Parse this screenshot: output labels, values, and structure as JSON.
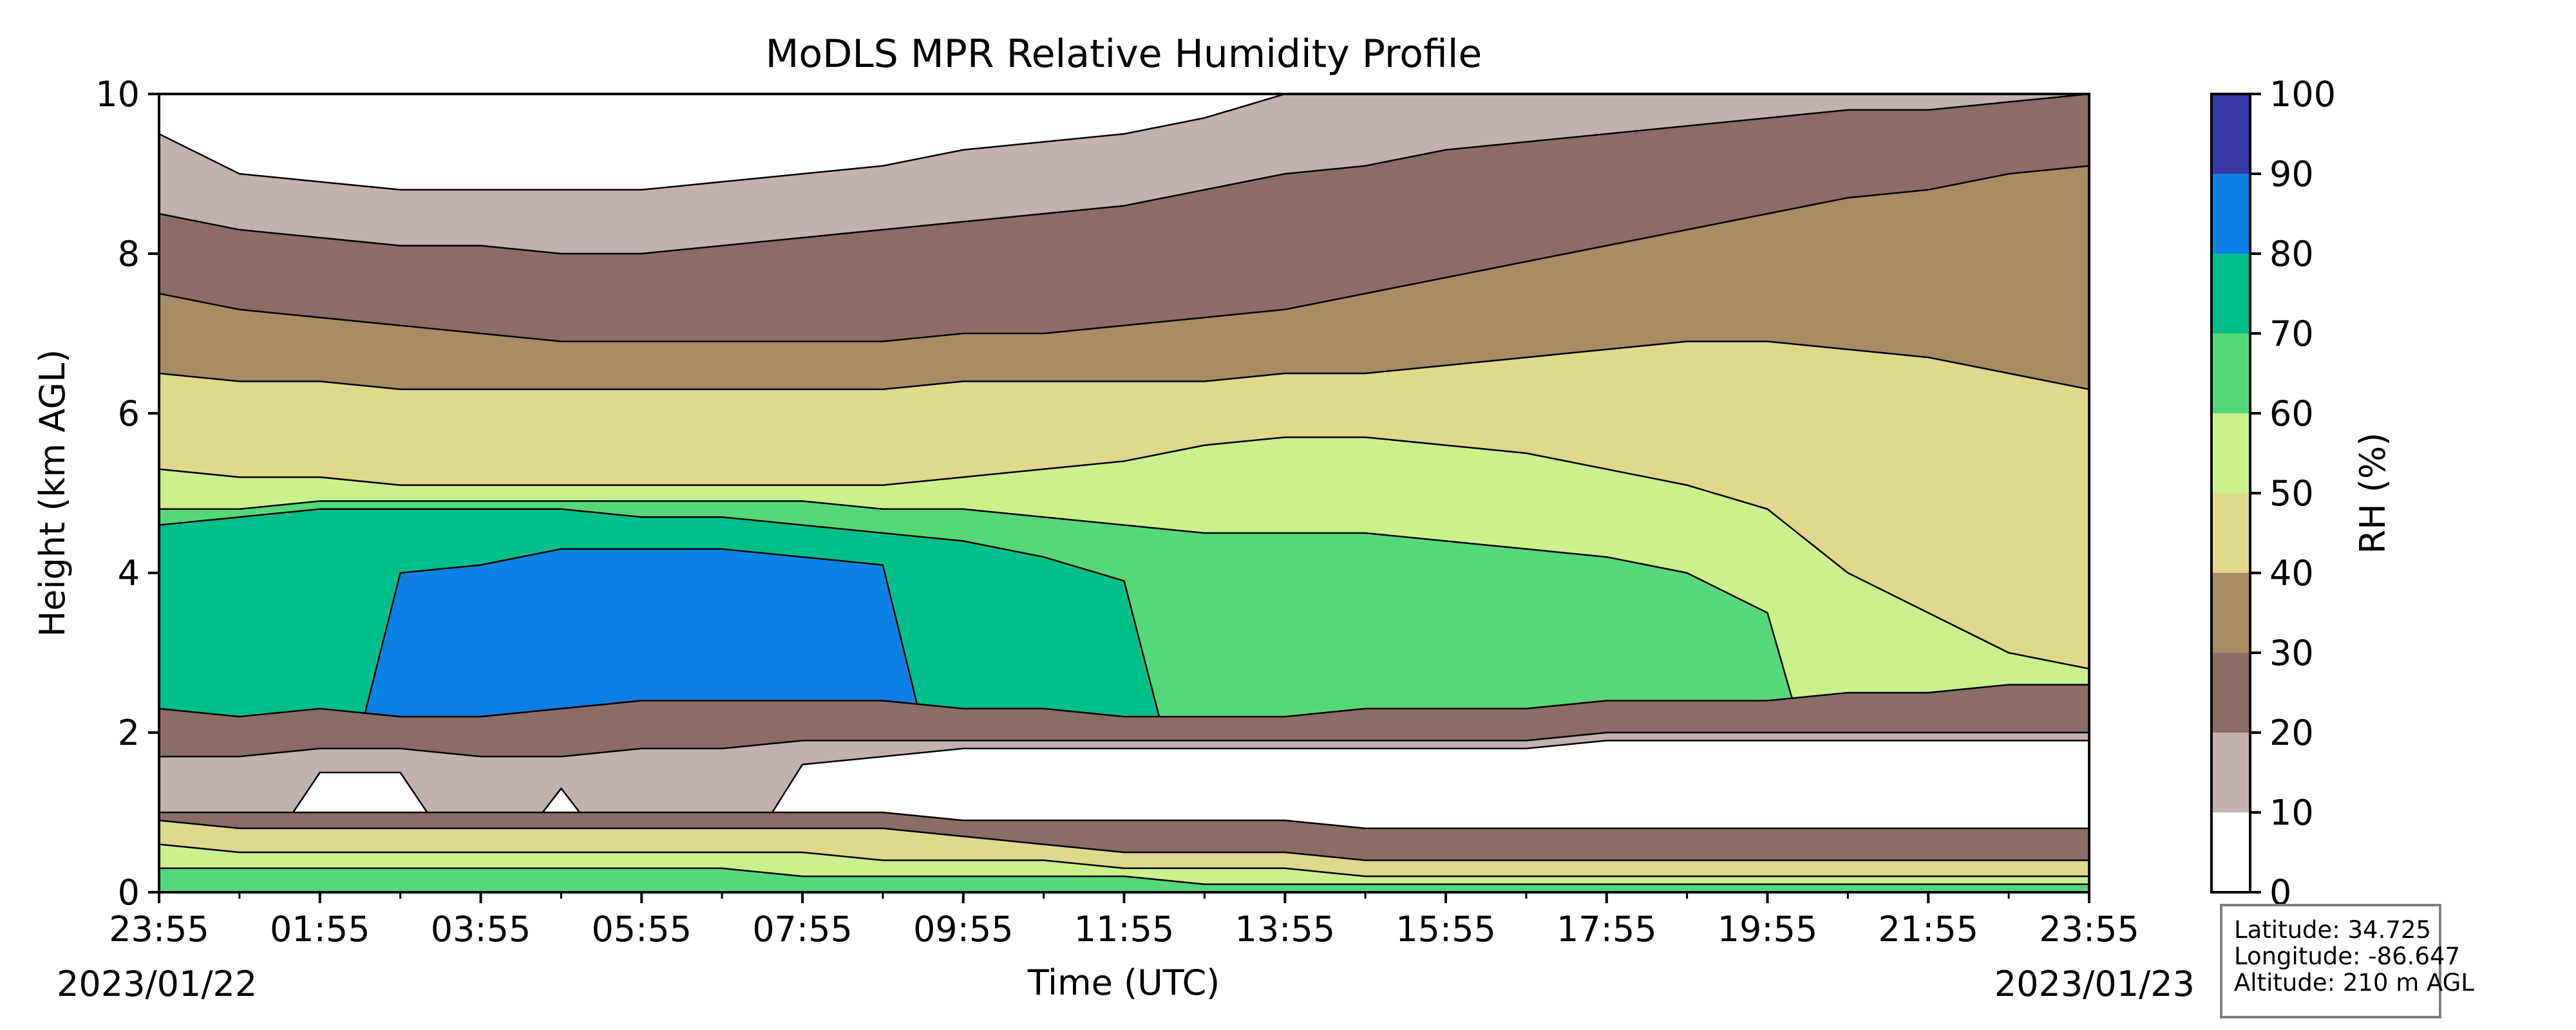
{
  "chart_data": {
    "type": "heatmap",
    "title": "MoDLS MPR Relative Humidity Profile",
    "xlabel": "Time (UTC)",
    "ylabel": "Height (km AGL)",
    "x_ticks": [
      "23:55",
      "01:55",
      "03:55",
      "05:55",
      "07:55",
      "09:55",
      "11:55",
      "13:55",
      "15:55",
      "17:55",
      "19:55",
      "21:55",
      "23:55"
    ],
    "x_hours": [
      0,
      2,
      4,
      6,
      8,
      10,
      12,
      14,
      16,
      18,
      20,
      22,
      24
    ],
    "xlim_hours": [
      0,
      24
    ],
    "start_date": "2023/01/22",
    "end_date": "2023/01/23",
    "y_ticks": [
      0,
      2,
      4,
      6,
      8,
      10
    ],
    "ylim": [
      0,
      10
    ],
    "colorbar": {
      "label": "RH (%)",
      "levels": [
        0,
        10,
        20,
        30,
        40,
        50,
        60,
        70,
        80,
        90,
        100
      ],
      "colors": [
        "#ffffff",
        "#c2b1ad",
        "#8b6d65",
        "#a88c64",
        "#e0d88a",
        "#c9f28c",
        "#55d978",
        "#00bf8b",
        "#0c80e5",
        "#3639a5"
      ]
    },
    "grid": false,
    "series": [
      {
        "time_hours": [
          0,
          1,
          2,
          3,
          4,
          5,
          6,
          7,
          8,
          9,
          10,
          11,
          12,
          13,
          14,
          15,
          16,
          17,
          18,
          19,
          20,
          21,
          22,
          23,
          24
        ],
        "band_boundaries_note": "",
        "bands": [
          {
            "rh_class": "0-10",
            "lower_km": [
              0,
              0,
              0,
              0,
              0,
              0,
              0,
              0,
              0,
              0,
              0,
              0,
              0,
              0,
              0,
              0,
              0,
              0,
              0,
              0,
              0,
              0,
              0,
              0,
              0
            ]
          }
        ]
      }
    ],
    "profile_bands": [
      {
        "level": 10,
        "heights_km": [
          9.5,
          9.0,
          8.9,
          8.8,
          8.8,
          8.8,
          8.8,
          8.9,
          9.0,
          9.1,
          9.3,
          9.4,
          9.5,
          9.7,
          10,
          10,
          10,
          10,
          10,
          10,
          10,
          10,
          10,
          10,
          10
        ]
      },
      {
        "level": 20,
        "heights_km": [
          8.5,
          8.3,
          8.2,
          8.1,
          8.1,
          8.0,
          8.0,
          8.1,
          8.2,
          8.3,
          8.4,
          8.5,
          8.6,
          8.8,
          9.0,
          9.1,
          9.3,
          9.4,
          9.5,
          9.6,
          9.7,
          9.8,
          9.8,
          9.9,
          10
        ]
      },
      {
        "level": 30,
        "heights_km": [
          7.5,
          7.3,
          7.2,
          7.1,
          7.0,
          6.9,
          6.9,
          6.9,
          6.9,
          6.9,
          7.0,
          7.0,
          7.1,
          7.2,
          7.3,
          7.5,
          7.7,
          7.9,
          8.1,
          8.3,
          8.5,
          8.7,
          8.8,
          9.0,
          9.1
        ]
      },
      {
        "level": 40,
        "heights_km": [
          6.5,
          6.4,
          6.4,
          6.3,
          6.3,
          6.3,
          6.3,
          6.3,
          6.3,
          6.3,
          6.4,
          6.4,
          6.4,
          6.4,
          6.5,
          6.5,
          6.6,
          6.7,
          6.8,
          6.9,
          6.9,
          6.8,
          6.7,
          6.5,
          6.3
        ]
      },
      {
        "level": 50,
        "heights_km": [
          5.3,
          5.2,
          5.2,
          5.1,
          5.1,
          5.1,
          5.1,
          5.1,
          5.1,
          5.1,
          5.2,
          5.3,
          5.4,
          5.6,
          5.7,
          5.7,
          5.6,
          5.5,
          5.3,
          5.1,
          4.8,
          4.0,
          3.5,
          3.0,
          2.8
        ]
      },
      {
        "level": 60,
        "heights_km": [
          4.8,
          4.8,
          4.9,
          4.9,
          4.9,
          4.9,
          4.9,
          4.9,
          4.9,
          4.8,
          4.8,
          4.7,
          4.6,
          4.5,
          4.5,
          4.5,
          4.4,
          4.3,
          4.2,
          4.0,
          3.5,
          0,
          0,
          0,
          0
        ]
      },
      {
        "level": 70,
        "heights_km": [
          4.6,
          4.7,
          4.8,
          4.8,
          4.8,
          4.8,
          4.7,
          4.7,
          4.6,
          4.5,
          4.4,
          4.2,
          3.9,
          0,
          0,
          0,
          0,
          0,
          0,
          0,
          0,
          0,
          0,
          0,
          0
        ]
      },
      {
        "level": 80,
        "heights_km": [
          0,
          0,
          0,
          4.0,
          4.1,
          4.3,
          4.3,
          4.3,
          4.2,
          4.1,
          0,
          0,
          0,
          0,
          0,
          0,
          0,
          0,
          0,
          0,
          0,
          0,
          0,
          0,
          0
        ]
      }
    ]
  },
  "info_box": {
    "latitude": "Latitude: 34.725",
    "longitude": "Longitude: -86.647",
    "altitude": "Altitude: 210 m AGL"
  }
}
